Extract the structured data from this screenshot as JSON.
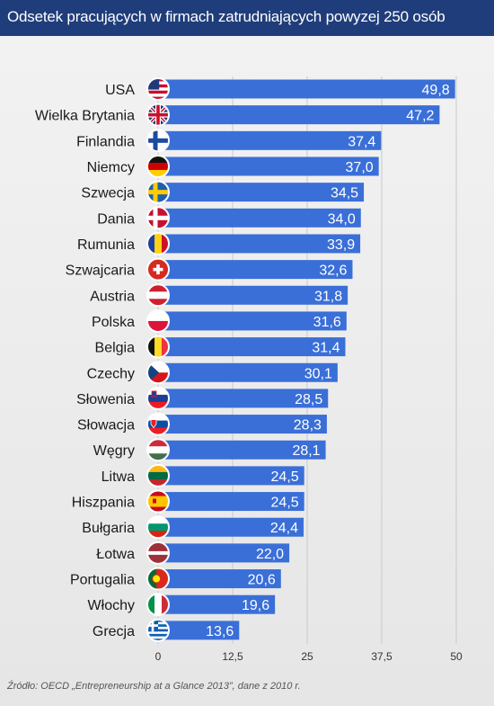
{
  "header": {
    "title": "Odsetek pracujących w firmach zatrudniających  powyzej 250 osób"
  },
  "source": "Źródło: OECD „Entrepreneurship at a Glance 2013”, dane z 2010 r.",
  "colors": {
    "header_bg": "#1f3d7a",
    "bar": "#3a6fd8",
    "bar_text": "#ffffff",
    "label_text": "#1a1a1a"
  },
  "chart_data": {
    "type": "bar",
    "orientation": "horizontal",
    "title": "Odsetek pracujących w firmach zatrudniających  powyzej 250 osób",
    "xlim": [
      0,
      50
    ],
    "x_ticks": [
      0,
      12.5,
      25,
      37.5,
      50
    ],
    "x_tick_labels": [
      "0",
      "12,5",
      "25",
      "37,5",
      "50"
    ],
    "grid": true,
    "categories": [
      "USA",
      "Wielka Brytania",
      "Finlandia",
      "Niemcy",
      "Szwecja",
      "Dania",
      "Rumunia",
      "Szwajcaria",
      "Austria",
      "Polska",
      "Belgia",
      "Czechy",
      "Słowenia",
      "Słowacja",
      "Węgry",
      "Litwa",
      "Hiszpania",
      "Bułgaria",
      "Łotwa",
      "Portugalia",
      "Włochy",
      "Grecja"
    ],
    "values": [
      49.8,
      47.2,
      37.4,
      37.0,
      34.5,
      34.0,
      33.9,
      32.6,
      31.8,
      31.6,
      31.4,
      30.1,
      28.5,
      28.3,
      28.1,
      24.5,
      24.5,
      24.4,
      22.0,
      20.6,
      19.6,
      13.6
    ],
    "value_labels": [
      "49,8",
      "47,2",
      "37,4",
      "37,0",
      "34,5",
      "34,0",
      "33,9",
      "32,6",
      "31,8",
      "31,6",
      "31,4",
      "30,1",
      "28,5",
      "28,3",
      "28,1",
      "24,5",
      "24,5",
      "24,4",
      "22,0",
      "20,6",
      "19,6",
      "13,6"
    ],
    "flags": [
      "usa-flag-icon",
      "uk-flag-icon",
      "finland-flag-icon",
      "germany-flag-icon",
      "sweden-flag-icon",
      "denmark-flag-icon",
      "romania-flag-icon",
      "switzerland-flag-icon",
      "austria-flag-icon",
      "poland-flag-icon",
      "belgium-flag-icon",
      "czechia-flag-icon",
      "slovenia-flag-icon",
      "slovakia-flag-icon",
      "hungary-flag-icon",
      "lithuania-flag-icon",
      "spain-flag-icon",
      "bulgaria-flag-icon",
      "latvia-flag-icon",
      "portugal-flag-icon",
      "italy-flag-icon",
      "greece-flag-icon"
    ]
  }
}
